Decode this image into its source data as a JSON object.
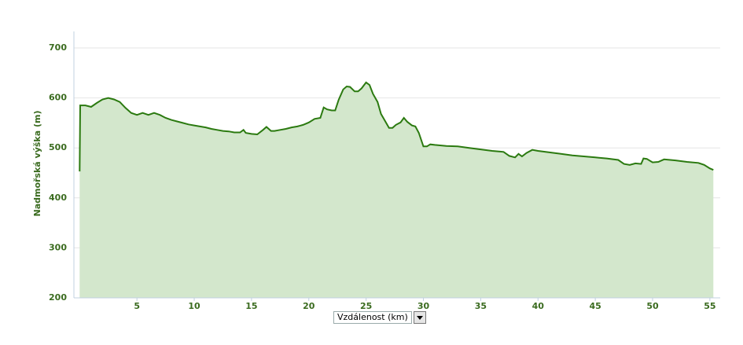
{
  "chart_data": {
    "type": "area",
    "y_label": "Nadmořská výška (m)",
    "x_label": "Vzdálenost (km)",
    "color": "#2b7a10",
    "fill": "#d3e7cc",
    "xlim": [
      -0.5,
      55.9
    ],
    "ylim": [
      200,
      700
    ],
    "xticks": [
      5,
      10,
      15,
      20,
      25,
      30,
      35,
      40,
      45,
      50,
      55
    ],
    "yticks": [
      200,
      300,
      400,
      500,
      600,
      700
    ],
    "grid": true,
    "x": [
      0,
      0.05,
      0.5,
      1,
      1.5,
      2,
      2.5,
      3,
      3.5,
      4,
      4.5,
      5,
      5.5,
      6,
      6.5,
      7,
      7.5,
      8,
      8.5,
      9,
      9.5,
      10,
      10.5,
      11,
      11.5,
      12,
      12.5,
      13,
      13.5,
      14,
      14.3,
      14.5,
      15,
      15.5,
      16,
      16.3,
      16.7,
      17,
      17.5,
      18,
      18.5,
      19,
      19.5,
      20,
      20.5,
      21,
      21.3,
      21.6,
      22,
      22.3,
      22.6,
      23,
      23.3,
      23.6,
      24,
      24.3,
      24.6,
      25,
      25.3,
      25.6,
      26,
      26.3,
      26.6,
      27,
      27.3,
      27.6,
      28,
      28.3,
      28.6,
      29,
      29.3,
      29.6,
      30,
      30.3,
      30.6,
      31,
      32,
      33,
      34,
      35,
      36,
      37,
      37.5,
      38,
      38.3,
      38.6,
      39,
      39.5,
      40,
      41,
      42,
      43,
      44,
      45,
      46,
      47,
      47.5,
      48,
      48.5,
      49,
      49.2,
      49.5,
      50,
      50.5,
      51,
      52,
      53,
      54,
      54.5,
      55,
      55.3
    ],
    "values": [
      453,
      585,
      585,
      582,
      590,
      597,
      600,
      597,
      592,
      580,
      570,
      566,
      570,
      566,
      570,
      566,
      560,
      556,
      553,
      550,
      547,
      545,
      543,
      541,
      538,
      536,
      534,
      533,
      531,
      531,
      536,
      530,
      528,
      527,
      536,
      542,
      534,
      534,
      536,
      538,
      541,
      543,
      546,
      551,
      558,
      560,
      581,
      577,
      575,
      575,
      596,
      617,
      623,
      622,
      613,
      613,
      619,
      631,
      626,
      608,
      592,
      568,
      556,
      540,
      540,
      546,
      551,
      560,
      552,
      545,
      543,
      530,
      503,
      503,
      507,
      506,
      504,
      503,
      500,
      497,
      494,
      492,
      484,
      481,
      488,
      483,
      490,
      496,
      494,
      491,
      488,
      485,
      483,
      481,
      479,
      476,
      468,
      466,
      469,
      468,
      479,
      478,
      471,
      472,
      477,
      475,
      472,
      470,
      466,
      459,
      456
    ]
  }
}
